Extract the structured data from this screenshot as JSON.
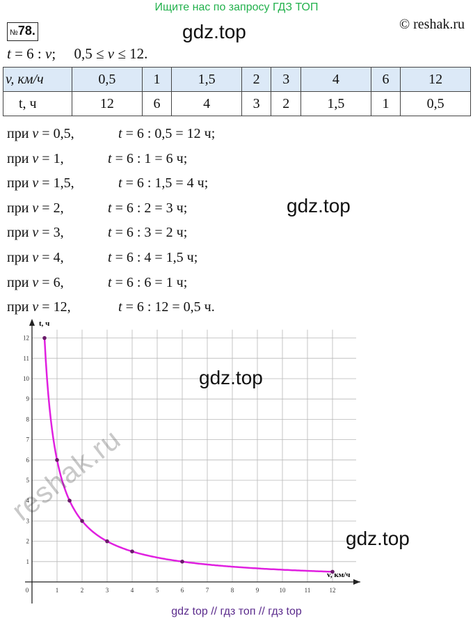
{
  "banner": "Ищите нас по запросу ГДЗ ТОП",
  "task": {
    "prefix": "№",
    "number": "78."
  },
  "copyright": "© reshak.ru",
  "watermarks": [
    "gdz.top",
    "gdz.top",
    "gdz.top",
    "gdz.top"
  ],
  "formula": {
    "t": "t",
    "eq": " = 6 : ",
    "v": "v",
    "range_pre": ";     0,5 ≤ ",
    "v2": "v",
    "range_post": " ≤ 12."
  },
  "table": {
    "row1_head": "v, км/ч",
    "row1": [
      "0,5",
      "1",
      "1,5",
      "2",
      "3",
      "4",
      "6",
      "12"
    ],
    "row2_head": "t, ч",
    "row2": [
      "12",
      "6",
      "4",
      "3",
      "2",
      "1,5",
      "1",
      "0,5"
    ]
  },
  "lines": [
    {
      "pre": "при ",
      "v": "v",
      "cond": " = 0,5,",
      "t": "t",
      "expr": " = 6 : 0,5 = 12 ч;"
    },
    {
      "pre": "при ",
      "v": "v",
      "cond": " = 1,",
      "t": "t",
      "expr": " = 6 : 1 = 6 ч;"
    },
    {
      "pre": "при ",
      "v": "v",
      "cond": " = 1,5,",
      "t": "t",
      "expr": " = 6 : 1,5 = 4 ч;"
    },
    {
      "pre": "при ",
      "v": "v",
      "cond": " = 2,",
      "t": "t",
      "expr": " = 6 : 2 = 3 ч;"
    },
    {
      "pre": "при ",
      "v": "v",
      "cond": " = 3,",
      "t": "t",
      "expr": " = 6 : 3 = 2 ч;"
    },
    {
      "pre": "при ",
      "v": "v",
      "cond": " = 4,",
      "t": "t",
      "expr": " = 6 : 4 = 1,5 ч;"
    },
    {
      "pre": "при ",
      "v": "v",
      "cond": " = 6,",
      "t": "t",
      "expr": " = 6 : 6 = 1 ч;"
    },
    {
      "pre": "при ",
      "v": "v",
      "cond": " = 12,",
      "t": "t",
      "expr": " = 6 : 12 = 0,5 ч."
    }
  ],
  "reshak_watermark": "reshak.ru",
  "footer": "gdz top  //  гдз топ  //  гдз top",
  "chart_data": {
    "type": "line",
    "xlabel": "v, км/ч",
    "ylabel": "t, ч",
    "xlim": [
      0,
      12
    ],
    "ylim": [
      0,
      12
    ],
    "x_ticks": [
      "0",
      "1",
      "2",
      "3",
      "4",
      "5",
      "6",
      "7",
      "8",
      "9",
      "10",
      "11",
      "12"
    ],
    "y_ticks": [
      "1",
      "2",
      "3",
      "4",
      "5",
      "6",
      "7",
      "8",
      "9",
      "10",
      "11",
      "12"
    ],
    "points": [
      {
        "x": 0.5,
        "y": 12
      },
      {
        "x": 1,
        "y": 6
      },
      {
        "x": 1.5,
        "y": 4
      },
      {
        "x": 2,
        "y": 3
      },
      {
        "x": 3,
        "y": 2
      },
      {
        "x": 4,
        "y": 1.5
      },
      {
        "x": 6,
        "y": 1
      },
      {
        "x": 12,
        "y": 0.5
      }
    ],
    "function": "t = 6 / v",
    "grid": true,
    "curve_color": "#e020e0",
    "point_color": "#6a1a6a",
    "grid_color": "#b8b8b8"
  }
}
